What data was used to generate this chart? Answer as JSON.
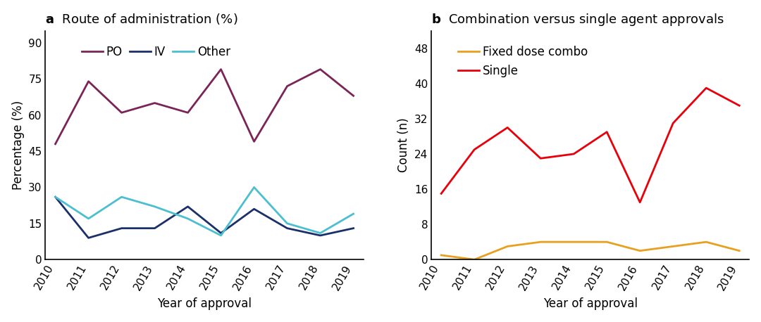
{
  "years": [
    2010,
    2011,
    2012,
    2013,
    2014,
    2015,
    2016,
    2017,
    2018,
    2019
  ],
  "panel_a": {
    "title_prefix": "a",
    "title": "Route of administration (%)",
    "ylabel": "Percentage (%)",
    "xlabel": "Year of approval",
    "ylim": [
      0,
      95
    ],
    "yticks": [
      0,
      15,
      30,
      45,
      60,
      75,
      90
    ],
    "PO": [
      48,
      74,
      61,
      65,
      61,
      79,
      49,
      72,
      79,
      68
    ],
    "IV": [
      26,
      9,
      13,
      13,
      22,
      11,
      21,
      13,
      10,
      13
    ],
    "Other": [
      26,
      17,
      26,
      22,
      17,
      10,
      30,
      15,
      11,
      19
    ],
    "PO_color": "#7B2457",
    "IV_color": "#1B2F6B",
    "Other_color": "#4BBFCF",
    "line_width": 2.0
  },
  "panel_b": {
    "title_prefix": "b",
    "title": "Combination versus single agent approvals",
    "ylabel": "Count (n)",
    "xlabel": "Year of approval",
    "ylim": [
      0,
      52
    ],
    "yticks": [
      0,
      8,
      16,
      24,
      32,
      40,
      48
    ],
    "fixed_dose": [
      1,
      0,
      3,
      4,
      4,
      4,
      2,
      3,
      4,
      2
    ],
    "single": [
      15,
      25,
      30,
      23,
      24,
      29,
      13,
      31,
      39,
      35
    ],
    "fixed_dose_color": "#E8A020",
    "single_color": "#E8000A",
    "line_width": 2.0
  },
  "bg_color": "#FFFFFF",
  "title_fontsize": 13,
  "label_fontsize": 12,
  "tick_fontsize": 11,
  "legend_fontsize": 12
}
